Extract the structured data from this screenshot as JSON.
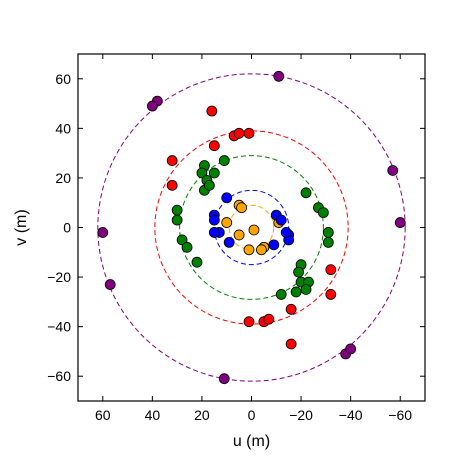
{
  "chart_data": {
    "type": "scatter",
    "title": "",
    "xlabel": "u (m)",
    "ylabel": "v (m)",
    "xlim": [
      70,
      -70
    ],
    "ylim": [
      -70,
      70
    ],
    "x_reversed": true,
    "grid": false,
    "legend": "none",
    "xticks": [
      60,
      40,
      20,
      0,
      -20,
      -40,
      -60
    ],
    "yticks": [
      -60,
      -40,
      -20,
      0,
      20,
      40,
      60
    ],
    "xtick_labels": [
      "60",
      "40",
      "20",
      "0",
      "−20",
      "−40",
      "−60"
    ],
    "ytick_labels": [
      "−60",
      "−40",
      "−20",
      "0",
      "20",
      "40",
      "60"
    ],
    "circles": [
      {
        "radius": 9,
        "color": "#FFA500"
      },
      {
        "radius": 15,
        "color": "#0000FF"
      },
      {
        "radius": 29,
        "color": "#008000"
      },
      {
        "radius": 39,
        "color": "#FF0000"
      },
      {
        "radius": 62,
        "color": "#800080"
      }
    ],
    "series": [
      {
        "color": "#FFA500",
        "points": [
          [
            5,
            9
          ],
          [
            4,
            8
          ],
          [
            -1,
            -1
          ],
          [
            -11,
            2
          ],
          [
            -5,
            -8
          ],
          [
            -4,
            -9
          ],
          [
            1,
            -9
          ],
          [
            5,
            -3
          ],
          [
            10,
            2
          ]
        ]
      },
      {
        "color": "#0000FF",
        "points": [
          [
            10,
            12
          ],
          [
            15,
            5
          ],
          [
            15,
            3
          ],
          [
            13,
            -2
          ],
          [
            9,
            -6
          ],
          [
            -10,
            5
          ],
          [
            -15,
            -3
          ],
          [
            -15,
            -5
          ],
          [
            -14,
            -2
          ],
          [
            -9,
            -7
          ],
          [
            15,
            -2
          ],
          [
            -12,
            3
          ]
        ]
      },
      {
        "color": "#008000",
        "points": [
          [
            19,
            25
          ],
          [
            20,
            22
          ],
          [
            18,
            19
          ],
          [
            19,
            15
          ],
          [
            17,
            17
          ],
          [
            11,
            27
          ],
          [
            15,
            22
          ],
          [
            30,
            7
          ],
          [
            30,
            3
          ],
          [
            28,
            -5
          ],
          [
            26,
            -8
          ],
          [
            22,
            -14
          ],
          [
            -22,
            14
          ],
          [
            -27,
            8
          ],
          [
            -29,
            6
          ],
          [
            -31,
            -2
          ],
          [
            -31,
            -6
          ],
          [
            -20,
            -15
          ],
          [
            -19,
            -18
          ],
          [
            -20,
            -22
          ],
          [
            -18,
            -26
          ],
          [
            -12,
            -27
          ],
          [
            -23,
            -22
          ],
          [
            -22,
            -25
          ]
        ]
      },
      {
        "color": "#FF0000",
        "points": [
          [
            16,
            47
          ],
          [
            15,
            33
          ],
          [
            32,
            27
          ],
          [
            32,
            17
          ],
          [
            7,
            37
          ],
          [
            5,
            38
          ],
          [
            1,
            38
          ],
          [
            -32,
            -17
          ],
          [
            -32,
            -27
          ],
          [
            -16,
            -33
          ],
          [
            -16,
            -47
          ],
          [
            -5,
            -38
          ],
          [
            -7,
            -37
          ],
          [
            1,
            -38
          ]
        ]
      },
      {
        "color": "#800080",
        "points": [
          [
            -11,
            61
          ],
          [
            38,
            51
          ],
          [
            40,
            49
          ],
          [
            -57,
            23
          ],
          [
            -60,
            2
          ],
          [
            60,
            -2
          ],
          [
            57,
            -23
          ],
          [
            11,
            -61
          ],
          [
            -38,
            -51
          ],
          [
            -40,
            -49
          ]
        ]
      }
    ]
  }
}
